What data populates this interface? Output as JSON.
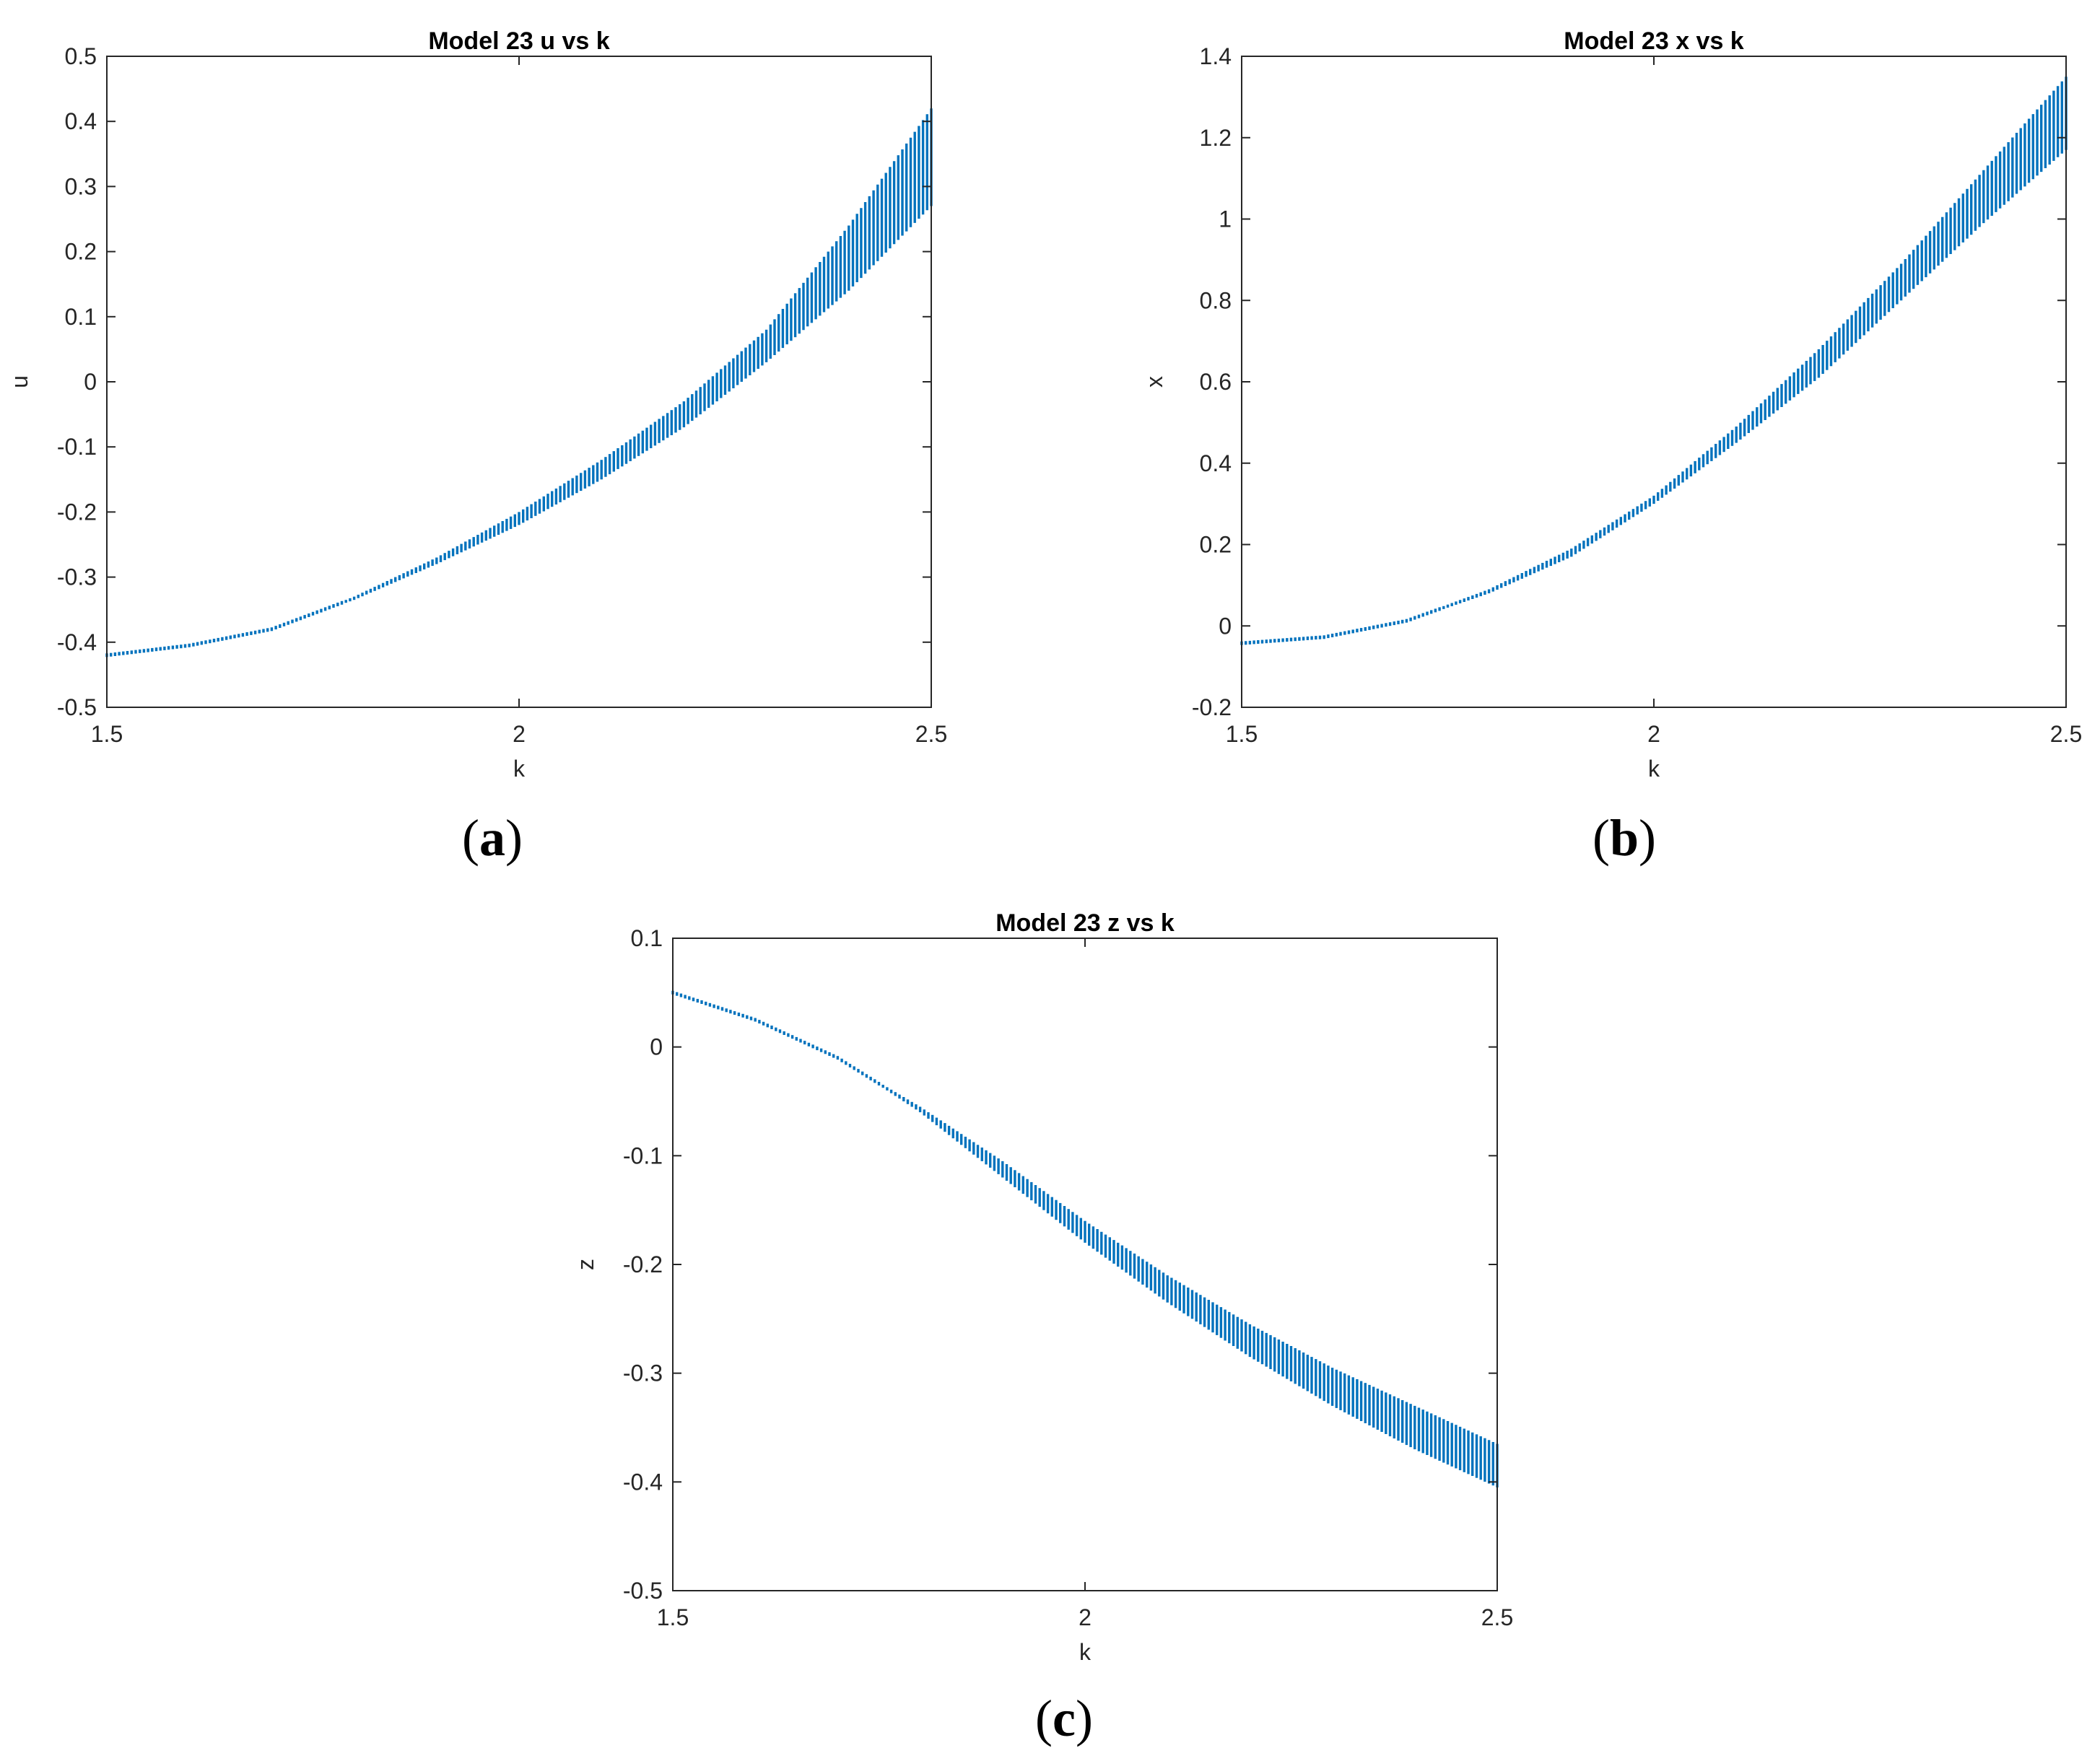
{
  "chart_data": [
    {
      "type": "bifurcation",
      "panel": "a",
      "caption": "a",
      "title": "Model 23 u vs k",
      "xlabel": "k",
      "ylabel": "u",
      "xlim": [
        1.5,
        2.5
      ],
      "ylim": [
        -0.5,
        0.5
      ],
      "xticks": [
        1.5,
        2,
        2.5
      ],
      "xtick_labels": [
        "1.5",
        "2",
        "2.5"
      ],
      "yticks": [
        -0.5,
        -0.4,
        -0.3,
        -0.2,
        -0.1,
        0,
        0.1,
        0.2,
        0.3,
        0.4,
        0.5
      ],
      "ytick_labels": [
        "-0.5",
        "-0.4",
        "-0.3",
        "-0.2",
        "-0.1",
        "0",
        "0.1",
        "0.2",
        "0.3",
        "0.4",
        "0.5"
      ],
      "grid": false,
      "color": "#0072BD",
      "band": {
        "k": [
          1.5,
          1.6,
          1.7,
          1.8,
          1.9,
          2.0,
          2.1,
          2.2,
          2.3,
          2.4,
          2.5
        ],
        "lower": [
          -0.42,
          -0.405,
          -0.38,
          -0.335,
          -0.28,
          -0.22,
          -0.15,
          -0.07,
          0.03,
          0.14,
          0.27
        ],
        "upper": [
          -0.42,
          -0.405,
          -0.38,
          -0.33,
          -0.27,
          -0.2,
          -0.12,
          -0.03,
          0.08,
          0.24,
          0.42
        ]
      }
    },
    {
      "type": "bifurcation",
      "panel": "b",
      "caption": "b",
      "title": "Model 23 x vs k",
      "xlabel": "k",
      "ylabel": "x",
      "xlim": [
        1.5,
        2.5
      ],
      "ylim": [
        -0.2,
        1.4
      ],
      "xticks": [
        1.5,
        2,
        2.5
      ],
      "xtick_labels": [
        "1.5",
        "2",
        "2.5"
      ],
      "yticks": [
        -0.2,
        0,
        0.2,
        0.4,
        0.6,
        0.8,
        1,
        1.2,
        1.4
      ],
      "ytick_labels": [
        "-0.2",
        "0",
        "0.2",
        "0.4",
        "0.6",
        "0.8",
        "1",
        "1.2",
        "1.4"
      ],
      "grid": false,
      "color": "#0072BD",
      "band": {
        "k": [
          1.5,
          1.6,
          1.7,
          1.8,
          1.9,
          2.0,
          2.1,
          2.2,
          2.3,
          2.4,
          2.5
        ],
        "lower": [
          -0.045,
          -0.03,
          0.01,
          0.08,
          0.17,
          0.3,
          0.45,
          0.61,
          0.8,
          0.99,
          1.17
        ],
        "upper": [
          -0.04,
          -0.025,
          0.015,
          0.09,
          0.19,
          0.32,
          0.49,
          0.68,
          0.89,
          1.12,
          1.35
        ]
      }
    },
    {
      "type": "bifurcation",
      "panel": "c",
      "caption": "c",
      "title": "Model 23 z vs k",
      "xlabel": "k",
      "ylabel": "z",
      "xlim": [
        1.5,
        2.5
      ],
      "ylim": [
        -0.5,
        0.1
      ],
      "xticks": [
        1.5,
        2,
        2.5
      ],
      "xtick_labels": [
        "1.5",
        "2",
        "2.5"
      ],
      "yticks": [
        -0.5,
        -0.4,
        -0.3,
        -0.2,
        -0.1,
        0,
        0.1
      ],
      "ytick_labels": [
        "-0.5",
        "-0.4",
        "-0.3",
        "-0.2",
        "-0.1",
        "0",
        "0.1"
      ],
      "grid": false,
      "color": "#0072BD",
      "band": {
        "k": [
          1.5,
          1.6,
          1.7,
          1.8,
          1.9,
          2.0,
          2.1,
          2.2,
          2.3,
          2.4,
          2.5
        ],
        "lower": [
          0.05,
          0.025,
          -0.01,
          -0.06,
          -0.12,
          -0.18,
          -0.235,
          -0.285,
          -0.33,
          -0.37,
          -0.405
        ],
        "upper": [
          0.05,
          0.025,
          -0.01,
          -0.055,
          -0.105,
          -0.16,
          -0.21,
          -0.255,
          -0.295,
          -0.33,
          -0.365
        ]
      }
    }
  ]
}
